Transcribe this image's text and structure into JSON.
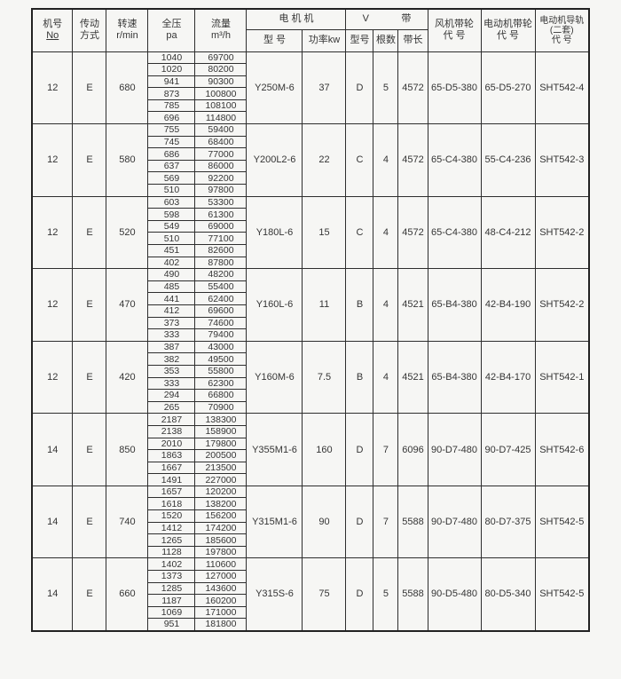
{
  "header": {
    "machine_no": {
      "line1": "机号",
      "line2": "No"
    },
    "drive": {
      "line1": "传动",
      "line2": "方式"
    },
    "speed": {
      "line1": "转速",
      "line2": "r/min"
    },
    "pressure": {
      "line1": "全压",
      "line2": "pa"
    },
    "flow": {
      "line1": "流量",
      "line2": "m³/h"
    },
    "motor_group": "电 机 机",
    "motor_model": "型 号",
    "motor_power": "功率kw",
    "vbelt_group": {
      "left": "V",
      "right": "带"
    },
    "belt_model": "型号",
    "belt_count": "根数",
    "belt_length": "带长",
    "fan_pulley": {
      "line1": "风机带轮",
      "line2": "代 号"
    },
    "motor_pulley": {
      "line1": "电动机带轮",
      "line2": "代 号"
    },
    "motor_rail": {
      "line1": "电动机导轨",
      "line2": "(二套)",
      "line3": "代 号"
    }
  },
  "groups": [
    {
      "no": "12",
      "drive": "E",
      "speed": "680",
      "rows": [
        [
          "1040",
          "69700"
        ],
        [
          "1020",
          "80200"
        ],
        [
          "941",
          "90300"
        ],
        [
          "873",
          "100800"
        ],
        [
          "785",
          "108100"
        ],
        [
          "696",
          "114800"
        ]
      ],
      "motor_model": "Y250M-6",
      "power_kw": "37",
      "belt_model": "D",
      "belt_count": "5",
      "belt_length": "4572",
      "fan_pulley_code": "65-D5-380",
      "motor_pulley_code": "65-D5-270",
      "motor_rail_code": "SHT542-4"
    },
    {
      "no": "12",
      "drive": "E",
      "speed": "580",
      "rows": [
        [
          "755",
          "59400"
        ],
        [
          "745",
          "68400"
        ],
        [
          "686",
          "77000"
        ],
        [
          "637",
          "86000"
        ],
        [
          "569",
          "92200"
        ],
        [
          "510",
          "97800"
        ]
      ],
      "motor_model": "Y200L2-6",
      "power_kw": "22",
      "belt_model": "C",
      "belt_count": "4",
      "belt_length": "4572",
      "fan_pulley_code": "65-C4-380",
      "motor_pulley_code": "55-C4-236",
      "motor_rail_code": "SHT542-3"
    },
    {
      "no": "12",
      "drive": "E",
      "speed": "520",
      "rows": [
        [
          "603",
          "53300"
        ],
        [
          "598",
          "61300"
        ],
        [
          "549",
          "69000"
        ],
        [
          "510",
          "77100"
        ],
        [
          "451",
          "82600"
        ],
        [
          "402",
          "87800"
        ]
      ],
      "motor_model": "Y180L-6",
      "power_kw": "15",
      "belt_model": "C",
      "belt_count": "4",
      "belt_length": "4572",
      "fan_pulley_code": "65-C4-380",
      "motor_pulley_code": "48-C4-212",
      "motor_rail_code": "SHT542-2"
    },
    {
      "no": "12",
      "drive": "E",
      "speed": "470",
      "rows": [
        [
          "490",
          "48200"
        ],
        [
          "485",
          "55400"
        ],
        [
          "441",
          "62400"
        ],
        [
          "412",
          "69600"
        ],
        [
          "373",
          "74600"
        ],
        [
          "333",
          "79400"
        ]
      ],
      "motor_model": "Y160L-6",
      "power_kw": "11",
      "belt_model": "B",
      "belt_count": "4",
      "belt_length": "4521",
      "fan_pulley_code": "65-B4-380",
      "motor_pulley_code": "42-B4-190",
      "motor_rail_code": "SHT542-2"
    },
    {
      "no": "12",
      "drive": "E",
      "speed": "420",
      "rows": [
        [
          "387",
          "43000"
        ],
        [
          "382",
          "49500"
        ],
        [
          "353",
          "55800"
        ],
        [
          "333",
          "62300"
        ],
        [
          "294",
          "66800"
        ],
        [
          "265",
          "70900"
        ]
      ],
      "motor_model": "Y160M-6",
      "power_kw": "7.5",
      "belt_model": "B",
      "belt_count": "4",
      "belt_length": "4521",
      "fan_pulley_code": "65-B4-380",
      "motor_pulley_code": "42-B4-170",
      "motor_rail_code": "SHT542-1"
    },
    {
      "no": "14",
      "drive": "E",
      "speed": "850",
      "rows": [
        [
          "2187",
          "138300"
        ],
        [
          "2138",
          "158900"
        ],
        [
          "2010",
          "179800"
        ],
        [
          "1863",
          "200500"
        ],
        [
          "1667",
          "213500"
        ],
        [
          "1491",
          "227000"
        ]
      ],
      "motor_model": "Y355M1-6",
      "power_kw": "160",
      "belt_model": "D",
      "belt_count": "7",
      "belt_length": "6096",
      "fan_pulley_code": "90-D7-480",
      "motor_pulley_code": "90-D7-425",
      "motor_rail_code": "SHT542-6"
    },
    {
      "no": "14",
      "drive": "E",
      "speed": "740",
      "rows": [
        [
          "1657",
          "120200"
        ],
        [
          "1618",
          "138200"
        ],
        [
          "1520",
          "156200"
        ],
        [
          "1412",
          "174200"
        ],
        [
          "1265",
          "185600"
        ],
        [
          "1128",
          "197800"
        ]
      ],
      "motor_model": "Y315M1-6",
      "power_kw": "90",
      "belt_model": "D",
      "belt_count": "7",
      "belt_length": "5588",
      "fan_pulley_code": "90-D7-480",
      "motor_pulley_code": "80-D7-375",
      "motor_rail_code": "SHT542-5"
    },
    {
      "no": "14",
      "drive": "E",
      "speed": "660",
      "rows": [
        [
          "1402",
          "110600"
        ],
        [
          "1373",
          "127000"
        ],
        [
          "1285",
          "143600"
        ],
        [
          "1187",
          "160200"
        ],
        [
          "1069",
          "171000"
        ],
        [
          "951",
          "181800"
        ]
      ],
      "motor_model": "Y315S-6",
      "power_kw": "75",
      "belt_model": "D",
      "belt_count": "5",
      "belt_length": "5588",
      "fan_pulley_code": "90-D5-480",
      "motor_pulley_code": "80-D5-340",
      "motor_rail_code": "SHT542-5"
    }
  ]
}
